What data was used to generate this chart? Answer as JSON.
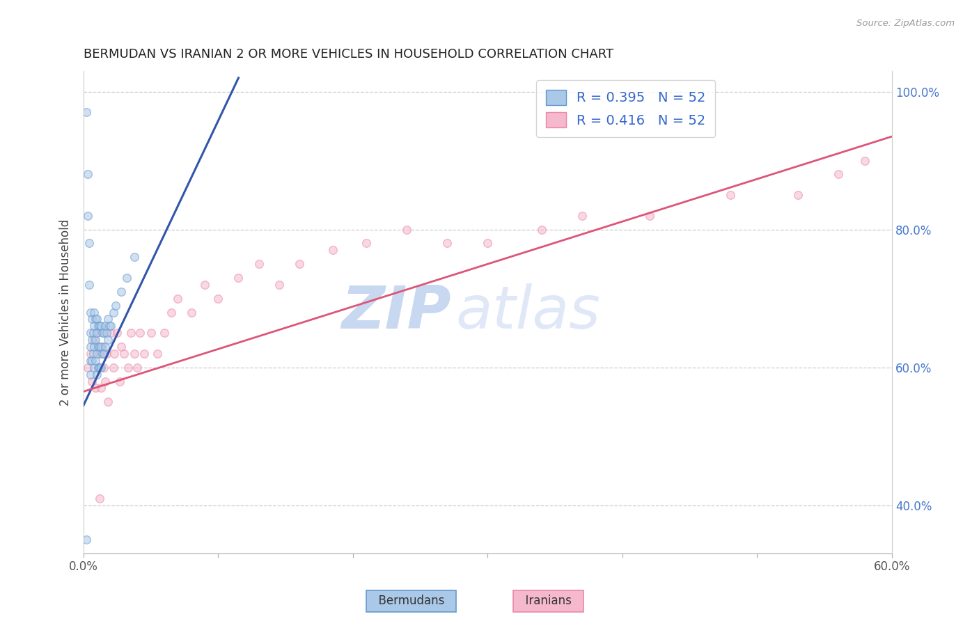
{
  "title": "BERMUDAN VS IRANIAN 2 OR MORE VEHICLES IN HOUSEHOLD CORRELATION CHART",
  "source_text": "Source: ZipAtlas.com",
  "ylabel": "2 or more Vehicles in Household",
  "xlim": [
    0.0,
    0.6
  ],
  "ylim": [
    0.33,
    1.03
  ],
  "xticks": [
    0.0,
    0.1,
    0.2,
    0.3,
    0.4,
    0.5,
    0.6
  ],
  "xticklabels": [
    "0.0%",
    "",
    "",
    "",
    "",
    "",
    "60.0%"
  ],
  "right_yticks": [
    0.4,
    0.6,
    0.8,
    1.0
  ],
  "right_yticklabels": [
    "40.0%",
    "60.0%",
    "80.0%",
    "100.0%"
  ],
  "bermudan_color": "#aac8e8",
  "bermudan_edge": "#6699cc",
  "iranian_color": "#f5b8cc",
  "iranian_edge": "#e888aa",
  "bermudan_line_color": "#3355aa",
  "iranian_line_color": "#dd5577",
  "legend_label_1": "R = 0.395   N = 52",
  "legend_label_2": "R = 0.416   N = 52",
  "grid_color": "#cccccc",
  "bottom_legend_1": "Bermudans",
  "bottom_legend_2": "Iranians",
  "bermudan_x": [
    0.002,
    0.003,
    0.003,
    0.004,
    0.004,
    0.005,
    0.005,
    0.005,
    0.005,
    0.005,
    0.006,
    0.006,
    0.006,
    0.007,
    0.007,
    0.008,
    0.008,
    0.008,
    0.008,
    0.009,
    0.009,
    0.009,
    0.01,
    0.01,
    0.01,
    0.01,
    0.011,
    0.011,
    0.011,
    0.012,
    0.012,
    0.012,
    0.013,
    0.013,
    0.013,
    0.014,
    0.014,
    0.015,
    0.015,
    0.016,
    0.016,
    0.017,
    0.018,
    0.018,
    0.019,
    0.02,
    0.022,
    0.024,
    0.028,
    0.032,
    0.038,
    0.002
  ],
  "bermudan_y": [
    0.97,
    0.88,
    0.82,
    0.78,
    0.72,
    0.68,
    0.65,
    0.63,
    0.61,
    0.59,
    0.61,
    0.64,
    0.67,
    0.62,
    0.65,
    0.6,
    0.63,
    0.66,
    0.68,
    0.61,
    0.64,
    0.67,
    0.59,
    0.62,
    0.65,
    0.67,
    0.6,
    0.63,
    0.66,
    0.6,
    0.63,
    0.66,
    0.6,
    0.63,
    0.66,
    0.62,
    0.65,
    0.62,
    0.65,
    0.63,
    0.66,
    0.65,
    0.64,
    0.67,
    0.66,
    0.66,
    0.68,
    0.69,
    0.71,
    0.73,
    0.76,
    0.35
  ],
  "iranian_x": [
    0.003,
    0.005,
    0.006,
    0.008,
    0.009,
    0.01,
    0.011,
    0.012,
    0.013,
    0.014,
    0.015,
    0.016,
    0.017,
    0.018,
    0.02,
    0.022,
    0.023,
    0.025,
    0.027,
    0.028,
    0.03,
    0.033,
    0.035,
    0.038,
    0.04,
    0.042,
    0.045,
    0.05,
    0.055,
    0.06,
    0.065,
    0.07,
    0.08,
    0.09,
    0.1,
    0.115,
    0.13,
    0.145,
    0.16,
    0.185,
    0.21,
    0.24,
    0.27,
    0.3,
    0.34,
    0.37,
    0.42,
    0.48,
    0.53,
    0.56,
    0.58,
    0.012
  ],
  "iranian_y": [
    0.6,
    0.62,
    0.58,
    0.64,
    0.57,
    0.65,
    0.6,
    0.62,
    0.57,
    0.63,
    0.6,
    0.58,
    0.62,
    0.55,
    0.65,
    0.6,
    0.62,
    0.65,
    0.58,
    0.63,
    0.62,
    0.6,
    0.65,
    0.62,
    0.6,
    0.65,
    0.62,
    0.65,
    0.62,
    0.65,
    0.68,
    0.7,
    0.68,
    0.72,
    0.7,
    0.73,
    0.75,
    0.72,
    0.75,
    0.77,
    0.78,
    0.8,
    0.78,
    0.78,
    0.8,
    0.82,
    0.82,
    0.85,
    0.85,
    0.88,
    0.9,
    0.41
  ],
  "marker_size": 70,
  "marker_alpha": 0.55,
  "bermudan_trend_x": [
    0.0,
    0.115
  ],
  "bermudan_trend_y": [
    0.545,
    1.02
  ],
  "iranian_trend_x": [
    0.0,
    0.6
  ],
  "iranian_trend_y": [
    0.565,
    0.935
  ]
}
